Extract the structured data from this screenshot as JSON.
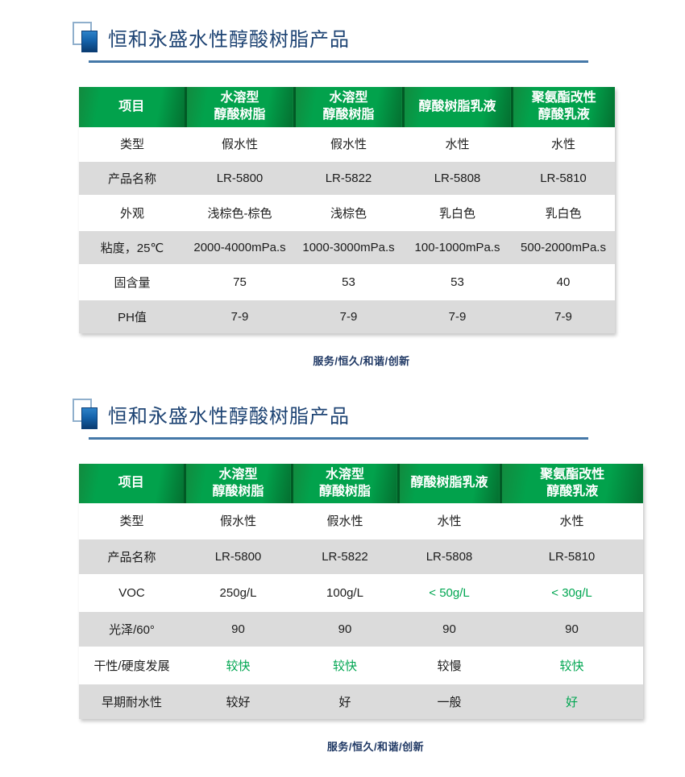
{
  "colors": {
    "title_blue": "#1d4373",
    "underline_blue": "#4578a8",
    "header_green": "#02a24c",
    "header_green_dark": "#046f30",
    "row_gray": "#dbdbdb",
    "value_green": "#00a651",
    "motto_blue": "#1f3864"
  },
  "sections": [
    {
      "title": "恒和永盛水性醇酸树脂产品",
      "motto": "服务/恒久/和谐/创新",
      "table": {
        "headers": [
          {
            "lines": [
              "项目"
            ]
          },
          {
            "lines": [
              "水溶型",
              "醇酸树脂"
            ]
          },
          {
            "lines": [
              "水溶型",
              "醇酸树脂"
            ]
          },
          {
            "lines": [
              "醇酸树脂乳液"
            ]
          },
          {
            "lines": [
              "聚氨酯改性",
              "醇酸乳液"
            ]
          }
        ],
        "rows": [
          {
            "label": "类型",
            "cells": [
              {
                "t": "假水性"
              },
              {
                "t": "假水性"
              },
              {
                "t": "水性"
              },
              {
                "t": "水性"
              }
            ]
          },
          {
            "label": "产品名称",
            "cells": [
              {
                "t": "LR-5800"
              },
              {
                "t": "LR-5822"
              },
              {
                "t": "LR-5808"
              },
              {
                "t": "LR-5810"
              }
            ]
          },
          {
            "label": "外观",
            "cells": [
              {
                "t": "浅棕色-棕色"
              },
              {
                "t": "浅棕色"
              },
              {
                "t": "乳白色"
              },
              {
                "t": "乳白色"
              }
            ]
          },
          {
            "label": "粘度，25℃",
            "cells": [
              {
                "t": "2000-4000mPa.s"
              },
              {
                "t": "1000-3000mPa.s"
              },
              {
                "t": "100-1000mPa.s"
              },
              {
                "t": "500-2000mPa.s"
              }
            ]
          },
          {
            "label": "固含量",
            "cells": [
              {
                "t": "75"
              },
              {
                "t": "53"
              },
              {
                "t": "53"
              },
              {
                "t": "40"
              }
            ]
          },
          {
            "label": "PH值",
            "cells": [
              {
                "t": "7-9"
              },
              {
                "t": "7-9"
              },
              {
                "t": "7-9"
              },
              {
                "t": "7-9"
              }
            ]
          }
        ]
      }
    },
    {
      "title": "恒和永盛水性醇酸树脂产品",
      "motto": "服务/恒久/和谐/创新",
      "table": {
        "headers": [
          {
            "lines": [
              "项目"
            ]
          },
          {
            "lines": [
              "水溶型",
              "醇酸树脂"
            ]
          },
          {
            "lines": [
              "水溶型",
              "醇酸树脂"
            ]
          },
          {
            "lines": [
              "醇酸树脂乳液"
            ]
          },
          {
            "lines": [
              "聚氨酯改性",
              "醇酸乳液"
            ]
          }
        ],
        "rows": [
          {
            "label": "类型",
            "cells": [
              {
                "t": "假水性"
              },
              {
                "t": "假水性"
              },
              {
                "t": "水性"
              },
              {
                "t": "水性"
              }
            ]
          },
          {
            "label": "产品名称",
            "cells": [
              {
                "t": "LR-5800"
              },
              {
                "t": "LR-5822"
              },
              {
                "t": "LR-5808"
              },
              {
                "t": "LR-5810"
              }
            ]
          },
          {
            "label": "VOC",
            "cells": [
              {
                "t": "250g/L"
              },
              {
                "t": "100g/L"
              },
              {
                "t": "< 50g/L",
                "green": true
              },
              {
                "t": "< 30g/L",
                "green": true
              }
            ]
          },
          {
            "label": "光泽/60°",
            "cells": [
              {
                "t": "90"
              },
              {
                "t": "90"
              },
              {
                "t": "90"
              },
              {
                "t": "90"
              }
            ]
          },
          {
            "label": "干性/硬度发展",
            "cells": [
              {
                "t": "较快",
                "green": true
              },
              {
                "t": "较快",
                "green": true
              },
              {
                "t": "较慢"
              },
              {
                "t": "较快",
                "green": true
              }
            ]
          },
          {
            "label": "早期耐水性",
            "cells": [
              {
                "t": "较好"
              },
              {
                "t": "好"
              },
              {
                "t": "一般"
              },
              {
                "t": "好",
                "green": true
              }
            ]
          }
        ]
      }
    }
  ]
}
